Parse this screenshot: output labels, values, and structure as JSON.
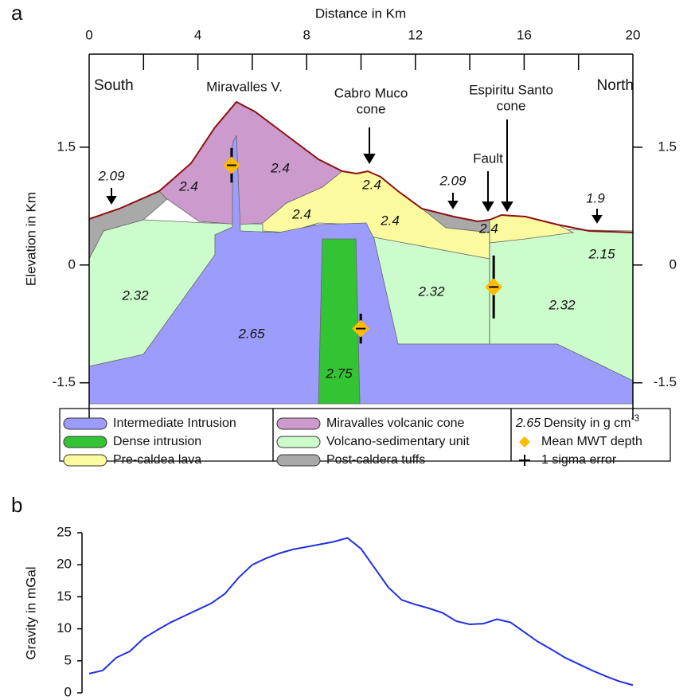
{
  "chart_data": [
    {
      "type": "section",
      "panel": "a",
      "xlabel": "Distance in Km",
      "ylabel": "Elevation in Km",
      "xlim": [
        0,
        20
      ],
      "xticks": [
        0,
        4,
        8,
        12,
        16,
        20
      ],
      "xminor": [
        2,
        6,
        10,
        14,
        18
      ],
      "ylim": [
        -2,
        2.7
      ],
      "yticks": [
        1.5,
        0,
        -1.5
      ],
      "annotations": [
        "South",
        "Miravalles V.",
        "Cabro Muco",
        "cone",
        "Espiritu Santo",
        "cone",
        "Fault",
        "North"
      ],
      "surface_densities": [
        2.09,
        2.09,
        1.9
      ],
      "unit_densities": [
        2.4,
        2.4,
        2.4,
        2.4,
        2.4,
        2.4,
        2.15,
        2.32,
        2.32,
        2.32,
        2.65,
        2.75
      ],
      "mwt": {
        "x": [
          5.24,
          9.99,
          14.88
        ],
        "y": [
          1.27,
          -0.81,
          -0.28
        ],
        "err": [
          0.22,
          0.19,
          0.4
        ]
      },
      "legend": [
        {
          "name": "Intermediate Intrusion",
          "color": "#9c9cfc"
        },
        {
          "name": "Dense intrusion",
          "color": "#33c433"
        },
        {
          "name": "Pre-caldea lava",
          "color": "#fbfa9e"
        },
        {
          "name": "Miravalles volcanic cone",
          "color": "#cc9acc"
        },
        {
          "name": "Volcano-sedimentary unit",
          "color": "#ccfccc"
        },
        {
          "name": "Post-caldera tuffs",
          "color": "#a9a9a9"
        }
      ],
      "density_example": 2.65,
      "density_unit": "Density in g cm",
      "density_exp": "-3",
      "mwt_label": "Mean MWT depth",
      "error_label": "1 sigma error"
    },
    {
      "type": "line",
      "panel": "b",
      "ylabel": "Gravity in mGal",
      "color": "#1f2fe0",
      "xlim": [
        0,
        20
      ],
      "ylim": [
        0,
        25
      ],
      "yticks": [
        0,
        5,
        10,
        15,
        20,
        25
      ],
      "x": [
        0,
        0.5,
        1,
        1.5,
        2,
        2.5,
        3,
        3.5,
        4,
        4.5,
        5,
        5.5,
        6,
        6.5,
        7,
        7.5,
        8,
        8.5,
        9,
        9.5,
        10,
        10.5,
        11,
        11.5,
        12,
        12.5,
        13,
        13.5,
        14,
        14.5,
        15,
        15.5,
        16,
        16.5,
        17,
        17.5,
        18,
        18.5,
        19,
        19.5,
        20
      ],
      "values": [
        3,
        3.5,
        5.5,
        6.5,
        8.5,
        9.8,
        11,
        12,
        13,
        14,
        15.5,
        18,
        20,
        21,
        21.8,
        22.4,
        22.8,
        23.2,
        23.6,
        24.2,
        22.5,
        19.5,
        16.5,
        14.5,
        13.8,
        13.2,
        12.5,
        11.2,
        10.7,
        10.8,
        11.5,
        11,
        9.5,
        8,
        6.8,
        5.5,
        4.5,
        3.5,
        2.6,
        1.8,
        1.2
      ]
    }
  ]
}
